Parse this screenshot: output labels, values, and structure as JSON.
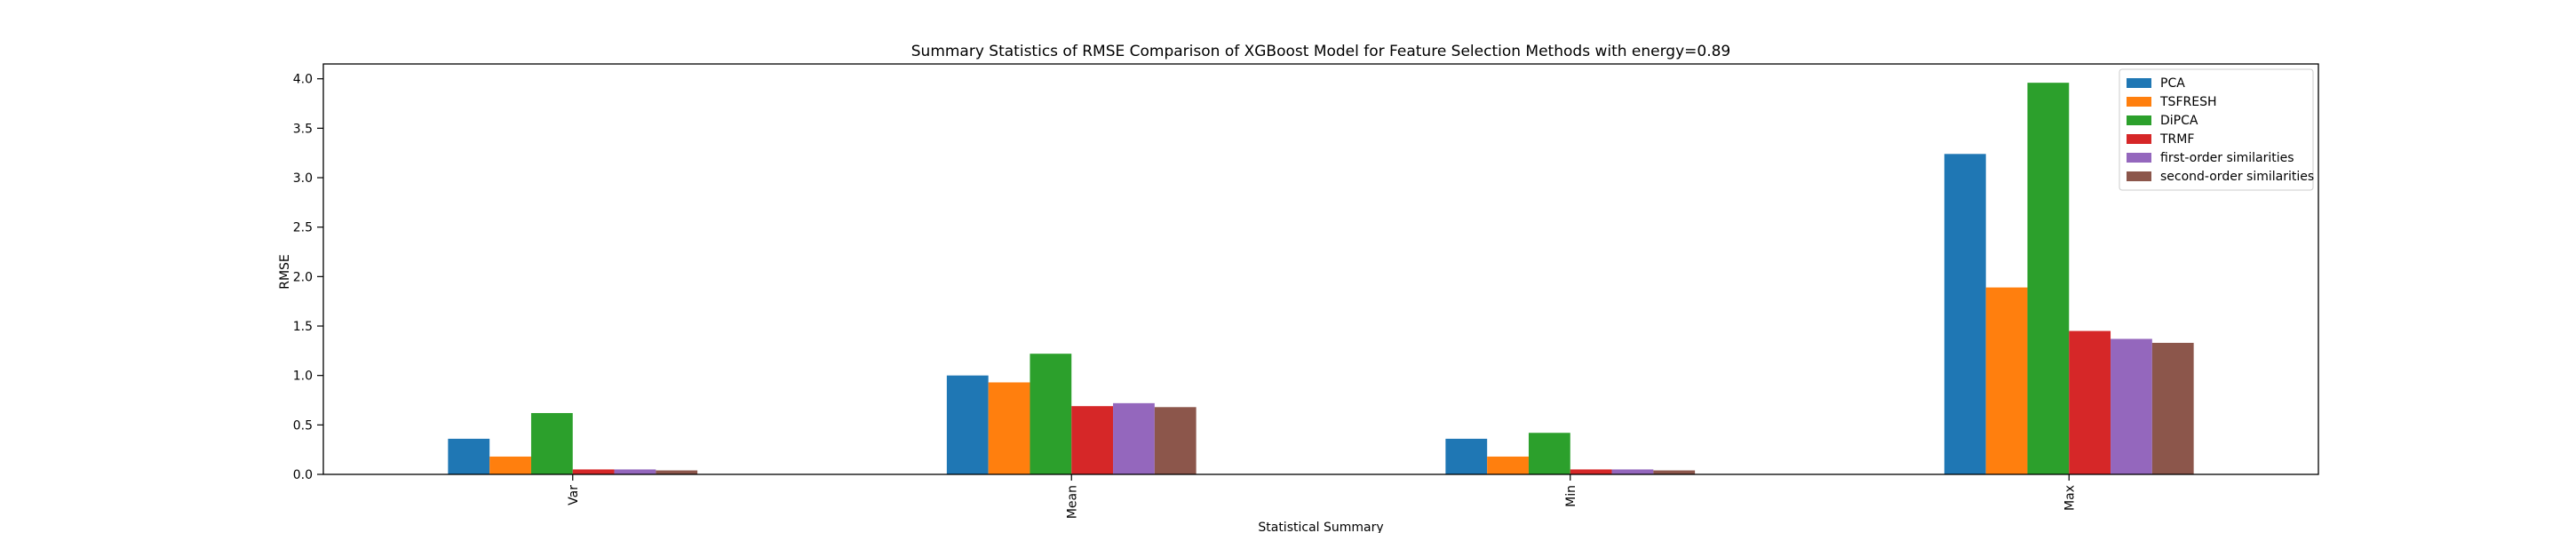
{
  "chart_data": {
    "type": "bar",
    "title": "Summary Statistics of RMSE Comparison of XGBoost Model for Feature Selection Methods with energy=0.89",
    "xlabel": "Statistical Summary",
    "ylabel": "RMSE",
    "categories": [
      "Var",
      "Mean",
      "Min",
      "Max"
    ],
    "ylim": [
      0,
      4.15
    ],
    "yticks": [
      "0.0",
      "0.5",
      "1.0",
      "1.5",
      "2.0",
      "2.5",
      "3.0",
      "3.5",
      "4.0"
    ],
    "ytick_values": [
      0,
      0.5,
      1.0,
      1.5,
      2.0,
      2.5,
      3.0,
      3.5,
      4.0
    ],
    "grid": false,
    "legend_position": "top-right",
    "series": [
      {
        "name": "PCA",
        "color": "#1f77b4",
        "values": [
          0.36,
          1.0,
          0.36,
          3.24
        ]
      },
      {
        "name": "TSFRESH",
        "color": "#ff7f0e",
        "values": [
          0.18,
          0.93,
          0.18,
          1.89
        ]
      },
      {
        "name": "DiPCA",
        "color": "#2ca02c",
        "values": [
          0.62,
          1.22,
          0.42,
          3.96
        ]
      },
      {
        "name": "TRMF",
        "color": "#d62728",
        "values": [
          0.05,
          0.69,
          0.05,
          1.45
        ]
      },
      {
        "name": "first-order similarities",
        "color": "#9467bd",
        "values": [
          0.05,
          0.72,
          0.05,
          1.37
        ]
      },
      {
        "name": "second-order similarities",
        "color": "#8c564b",
        "values": [
          0.04,
          0.68,
          0.04,
          1.33
        ]
      }
    ]
  }
}
